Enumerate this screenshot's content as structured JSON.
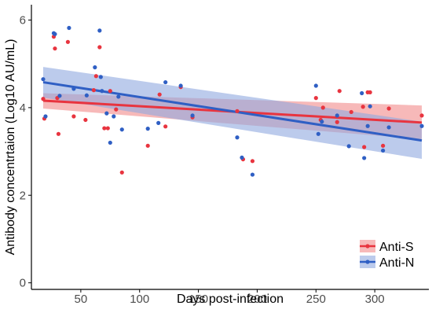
{
  "chart_data": {
    "type": "scatter",
    "xlabel": "Days post-infection",
    "ylabel": "Antibody concentrtaion (Log10 AU/mL)",
    "xlim": [
      8,
      346
    ],
    "ylim": [
      -0.15,
      6.35
    ],
    "x_ticks": [
      50,
      100,
      150,
      200,
      250,
      300
    ],
    "y_ticks": [
      0,
      2,
      4,
      6
    ],
    "grid": false,
    "legend_position": "bottom-right",
    "series": [
      {
        "name": "Anti-S",
        "color": "#e8343f",
        "band_color": "#f28b8b",
        "fit": {
          "x": [
            18,
            340
          ],
          "y": [
            4.16,
            3.66
          ]
        },
        "ci_lower": [
          3.98,
          3.28
        ],
        "ci_upper": [
          4.33,
          4.05
        ],
        "points": [
          {
            "x": 18,
            "y": 4.2
          },
          {
            "x": 19,
            "y": 3.75
          },
          {
            "x": 27,
            "y": 5.62
          },
          {
            "x": 28,
            "y": 5.35
          },
          {
            "x": 30,
            "y": 4.22
          },
          {
            "x": 31,
            "y": 3.4
          },
          {
            "x": 39,
            "y": 5.5
          },
          {
            "x": 44,
            "y": 3.8
          },
          {
            "x": 54,
            "y": 3.72
          },
          {
            "x": 61,
            "y": 4.4
          },
          {
            "x": 63,
            "y": 4.72
          },
          {
            "x": 66,
            "y": 5.38
          },
          {
            "x": 70,
            "y": 3.53
          },
          {
            "x": 73,
            "y": 3.53
          },
          {
            "x": 75,
            "y": 4.38
          },
          {
            "x": 80,
            "y": 3.96
          },
          {
            "x": 85,
            "y": 2.52
          },
          {
            "x": 107,
            "y": 3.13
          },
          {
            "x": 117,
            "y": 4.3
          },
          {
            "x": 122,
            "y": 3.57
          },
          {
            "x": 135,
            "y": 4.47
          },
          {
            "x": 145,
            "y": 3.78
          },
          {
            "x": 183,
            "y": 3.92
          },
          {
            "x": 188,
            "y": 2.82
          },
          {
            "x": 196,
            "y": 2.78
          },
          {
            "x": 250,
            "y": 4.22
          },
          {
            "x": 254,
            "y": 3.72
          },
          {
            "x": 256,
            "y": 4.0
          },
          {
            "x": 268,
            "y": 3.67
          },
          {
            "x": 270,
            "y": 4.38
          },
          {
            "x": 280,
            "y": 3.9
          },
          {
            "x": 290,
            "y": 4.02
          },
          {
            "x": 291,
            "y": 3.1
          },
          {
            "x": 294,
            "y": 4.35
          },
          {
            "x": 296,
            "y": 4.35
          },
          {
            "x": 307,
            "y": 3.13
          },
          {
            "x": 312,
            "y": 3.98
          },
          {
            "x": 340,
            "y": 3.82
          }
        ]
      },
      {
        "name": "Anti-N",
        "color": "#2f5fc4",
        "band_color": "#8fa9e0",
        "fit": {
          "x": [
            18,
            340
          ],
          "y": [
            4.58,
            3.25
          ]
        },
        "ci_lower": [
          4.23,
          2.83
        ],
        "ci_upper": [
          4.93,
          3.68
        ],
        "points": [
          {
            "x": 18,
            "y": 4.65
          },
          {
            "x": 20,
            "y": 3.8
          },
          {
            "x": 27,
            "y": 5.7
          },
          {
            "x": 28,
            "y": 5.68
          },
          {
            "x": 32,
            "y": 4.27
          },
          {
            "x": 40,
            "y": 5.82
          },
          {
            "x": 44,
            "y": 4.43
          },
          {
            "x": 55,
            "y": 4.28
          },
          {
            "x": 62,
            "y": 4.92
          },
          {
            "x": 66,
            "y": 5.76
          },
          {
            "x": 67,
            "y": 4.7
          },
          {
            "x": 68,
            "y": 4.38
          },
          {
            "x": 72,
            "y": 3.87
          },
          {
            "x": 75,
            "y": 3.2
          },
          {
            "x": 78,
            "y": 3.8
          },
          {
            "x": 82,
            "y": 4.25
          },
          {
            "x": 85,
            "y": 3.5
          },
          {
            "x": 107,
            "y": 3.52
          },
          {
            "x": 116,
            "y": 3.65
          },
          {
            "x": 122,
            "y": 4.58
          },
          {
            "x": 135,
            "y": 4.5
          },
          {
            "x": 145,
            "y": 3.82
          },
          {
            "x": 183,
            "y": 3.32
          },
          {
            "x": 187,
            "y": 2.86
          },
          {
            "x": 196,
            "y": 2.47
          },
          {
            "x": 250,
            "y": 4.5
          },
          {
            "x": 252,
            "y": 3.4
          },
          {
            "x": 255,
            "y": 3.68
          },
          {
            "x": 268,
            "y": 3.82
          },
          {
            "x": 278,
            "y": 3.12
          },
          {
            "x": 289,
            "y": 4.33
          },
          {
            "x": 291,
            "y": 2.85
          },
          {
            "x": 294,
            "y": 3.58
          },
          {
            "x": 296,
            "y": 4.03
          },
          {
            "x": 307,
            "y": 3.02
          },
          {
            "x": 312,
            "y": 3.55
          },
          {
            "x": 340,
            "y": 3.58
          }
        ]
      }
    ]
  }
}
